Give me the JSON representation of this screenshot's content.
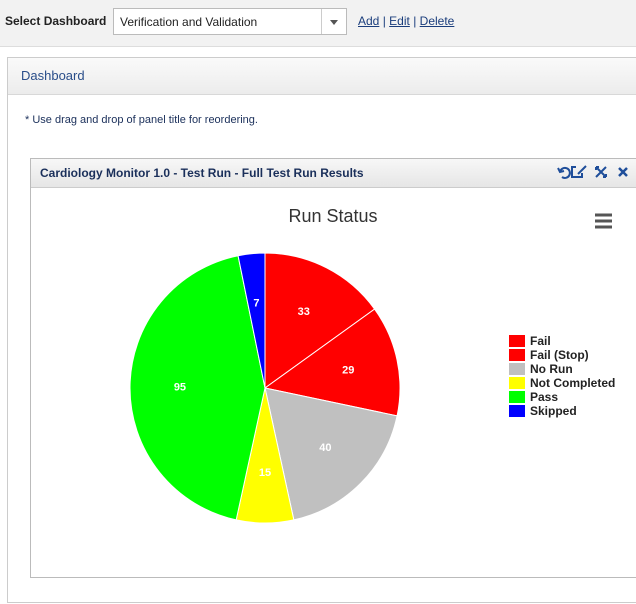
{
  "toolbar": {
    "label": "Select Dashboard",
    "selected": "Verification and Validation",
    "links": [
      "Add",
      "Edit",
      "Delete"
    ],
    "link_separator": "|"
  },
  "dashboard": {
    "title": "Dashboard",
    "note": "* Use drag and drop of panel title for reordering.",
    "panel_title": "Cardiology Monitor 1.0 - Test Run - Full Test Run Results"
  },
  "chart_data": {
    "type": "pie",
    "title": "Run Status",
    "categories": [
      "Fail",
      "Fail (Stop)",
      "No Run",
      "Not Completed",
      "Pass",
      "Skipped"
    ],
    "values": [
      33,
      29,
      40,
      15,
      95,
      7
    ],
    "colors": [
      "#ff0000",
      "#ff0000",
      "#c0c0c0",
      "#ffff00",
      "#00ff00",
      "#0000ff"
    ],
    "legend": "right"
  }
}
